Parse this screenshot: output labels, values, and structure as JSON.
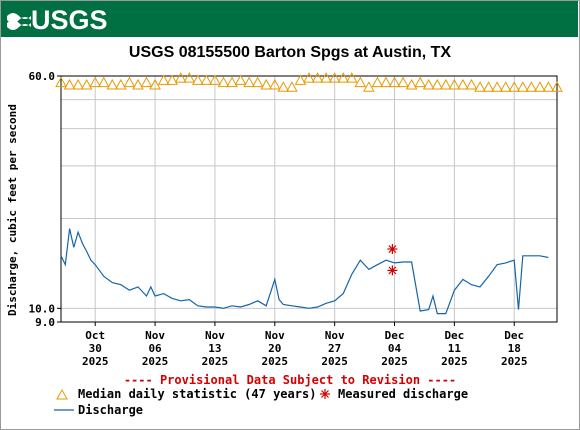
{
  "header": {
    "logo_text": "USGS",
    "logo_icon": "usgs-wave-icon",
    "banner_color": "#006f41"
  },
  "chart_data": {
    "type": "line",
    "title": "USGS 08155500 Barton Spgs at Austin, TX",
    "ylabel": "Discharge, cubic feet per second",
    "xlabel": "",
    "y_scale": "log",
    "ylim": [
      9.0,
      60.0
    ],
    "y_ticks": [
      {
        "value": 60.0,
        "label": "60.0"
      },
      {
        "value": 10.0,
        "label": "10.0"
      },
      {
        "value": 9.0,
        "label": "9.0"
      }
    ],
    "y_gridlines": [
      9.0,
      10.0,
      20.0,
      30.0,
      40.0,
      50.0,
      60.0
    ],
    "xlim": [
      "2025-10-26",
      "2025-12-23"
    ],
    "x_ticks": [
      {
        "date": "2025-10-30",
        "month": "Oct",
        "day": "30",
        "year": "2025"
      },
      {
        "date": "2025-11-06",
        "month": "Nov",
        "day": "06",
        "year": "2025"
      },
      {
        "date": "2025-11-13",
        "month": "Nov",
        "day": "13",
        "year": "2025"
      },
      {
        "date": "2025-11-20",
        "month": "Nov",
        "day": "20",
        "year": "2025"
      },
      {
        "date": "2025-11-27",
        "month": "Nov",
        "day": "27",
        "year": "2025"
      },
      {
        "date": "2025-12-04",
        "month": "Dec",
        "day": "04",
        "year": "2025"
      },
      {
        "date": "2025-12-11",
        "month": "Dec",
        "day": "11",
        "year": "2025"
      },
      {
        "date": "2025-12-18",
        "month": "Dec",
        "day": "18",
        "year": "2025"
      }
    ],
    "grid": true,
    "legend_position": "bottom",
    "colors": {
      "median": "#e89a00",
      "discharge": "#1565a8",
      "measured": "#d40000",
      "grid": "#c8c8c8"
    },
    "series": [
      {
        "name": "Median daily statistic (47 years)",
        "marker": "triangle",
        "x": [
          "2025-10-26",
          "2025-10-27",
          "2025-10-28",
          "2025-10-29",
          "2025-10-30",
          "2025-10-31",
          "2025-11-01",
          "2025-11-02",
          "2025-11-03",
          "2025-11-04",
          "2025-11-05",
          "2025-11-06",
          "2025-11-07",
          "2025-11-08",
          "2025-11-09",
          "2025-11-10",
          "2025-11-11",
          "2025-11-12",
          "2025-11-13",
          "2025-11-14",
          "2025-11-15",
          "2025-11-16",
          "2025-11-17",
          "2025-11-18",
          "2025-11-19",
          "2025-11-20",
          "2025-11-21",
          "2025-11-22",
          "2025-11-23",
          "2025-11-24",
          "2025-11-25",
          "2025-11-26",
          "2025-11-27",
          "2025-11-28",
          "2025-11-29",
          "2025-11-30",
          "2025-12-01",
          "2025-12-02",
          "2025-12-03",
          "2025-12-04",
          "2025-12-05",
          "2025-12-06",
          "2025-12-07",
          "2025-12-08",
          "2025-12-09",
          "2025-12-10",
          "2025-12-11",
          "2025-12-12",
          "2025-12-13",
          "2025-12-14",
          "2025-12-15",
          "2025-12-16",
          "2025-12-17",
          "2025-12-18",
          "2025-12-19",
          "2025-12-20",
          "2025-12-21",
          "2025-12-22",
          "2025-12-23"
        ],
        "values": [
          57,
          56,
          56,
          56,
          57,
          57,
          56,
          56,
          57,
          56,
          57,
          56,
          58,
          58,
          59,
          59,
          58,
          58,
          58,
          57,
          57,
          58,
          57,
          57,
          56,
          56,
          55,
          55,
          58,
          59,
          59,
          59,
          59,
          59,
          59,
          57,
          55,
          57,
          57,
          57,
          57,
          56,
          57,
          56,
          56,
          56,
          56,
          56,
          56,
          55,
          55,
          55,
          55,
          55,
          55,
          55,
          55,
          55,
          55
        ]
      },
      {
        "name": "Discharge",
        "marker": "line",
        "x": [
          "2025-10-26",
          "2025-10-26T12",
          "2025-10-27",
          "2025-10-27T12",
          "2025-10-28",
          "2025-10-28T12",
          "2025-10-29",
          "2025-10-29T12",
          "2025-10-30",
          "2025-10-31",
          "2025-11-01",
          "2025-11-02",
          "2025-11-03",
          "2025-11-04",
          "2025-11-05",
          "2025-11-05T12",
          "2025-11-06",
          "2025-11-07",
          "2025-11-08",
          "2025-11-09",
          "2025-11-10",
          "2025-11-11",
          "2025-11-12",
          "2025-11-13",
          "2025-11-14",
          "2025-11-15",
          "2025-11-16",
          "2025-11-17",
          "2025-11-18",
          "2025-11-19",
          "2025-11-20",
          "2025-11-20T12",
          "2025-11-21",
          "2025-11-22",
          "2025-11-23",
          "2025-11-24",
          "2025-11-25",
          "2025-11-26",
          "2025-11-27",
          "2025-11-28",
          "2025-11-29",
          "2025-11-30",
          "2025-12-01",
          "2025-12-02",
          "2025-12-03",
          "2025-12-04",
          "2025-12-05",
          "2025-12-06",
          "2025-12-07",
          "2025-12-08",
          "2025-12-08T12",
          "2025-12-09",
          "2025-12-10",
          "2025-12-11",
          "2025-12-12",
          "2025-12-13",
          "2025-12-14",
          "2025-12-15",
          "2025-12-16",
          "2025-12-17",
          "2025-12-18",
          "2025-12-18T12",
          "2025-12-19",
          "2025-12-20",
          "2025-12-21",
          "2025-12-22"
        ],
        "values": [
          15.0,
          14.0,
          18.5,
          16.0,
          18.0,
          16.5,
          15.5,
          14.5,
          14.0,
          12.8,
          12.2,
          12.0,
          11.5,
          11.8,
          11.0,
          11.8,
          11.0,
          11.2,
          10.8,
          10.6,
          10.7,
          10.2,
          10.1,
          10.1,
          10.0,
          10.2,
          10.1,
          10.3,
          10.6,
          10.2,
          12.5,
          10.7,
          10.3,
          10.2,
          10.1,
          10.0,
          10.1,
          10.4,
          10.6,
          11.2,
          13.0,
          14.5,
          13.5,
          14.0,
          14.5,
          14.2,
          14.3,
          14.3,
          9.8,
          9.9,
          11.0,
          9.6,
          9.6,
          11.5,
          12.5,
          12.0,
          11.8,
          12.8,
          14.0,
          14.2,
          14.5,
          9.9,
          15.0,
          15.0,
          15.0,
          14.8
        ]
      },
      {
        "name": "Measured discharge",
        "marker": "asterisk",
        "x": [
          "2025-12-03T18",
          "2025-12-03T18"
        ],
        "values": [
          15.8,
          13.4
        ]
      }
    ]
  },
  "provisional_text": "---- Provisional Data Subject to Revision ----",
  "legend": {
    "median": "Median daily statistic (47 years)",
    "measured": "Measured discharge",
    "discharge": "Discharge"
  }
}
